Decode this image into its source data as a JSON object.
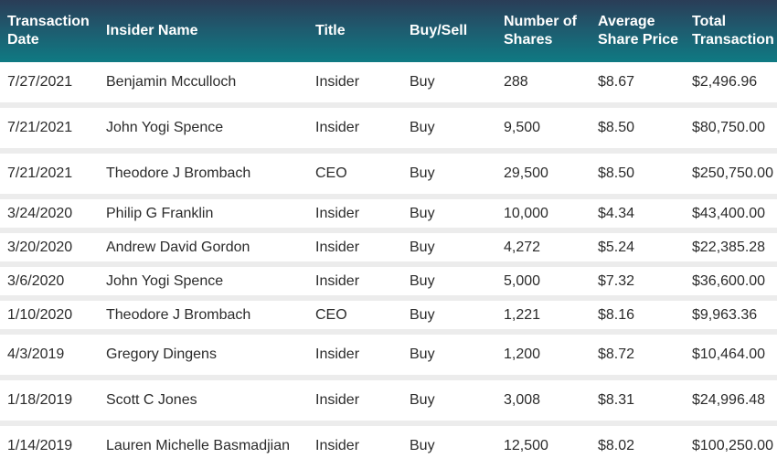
{
  "table": {
    "headers": {
      "date": "Transaction Date",
      "name": "Insider Name",
      "title": "Title",
      "buy_sell": "Buy/Sell",
      "shares": "Number of Shares",
      "price": "Average Share Price",
      "total": "Total Transaction"
    },
    "rows": [
      {
        "date": "7/27/2021",
        "name": "Benjamin Mcculloch",
        "title": "Insider",
        "buy_sell": "Buy",
        "shares": "288",
        "price": "$8.67",
        "total": "$2,496.96"
      },
      {
        "date": "7/21/2021",
        "name": "John Yogi Spence",
        "title": "Insider",
        "buy_sell": "Buy",
        "shares": "9,500",
        "price": "$8.50",
        "total": "$80,750.00"
      },
      {
        "date": "7/21/2021",
        "name": "Theodore J Brombach",
        "title": "CEO",
        "buy_sell": "Buy",
        "shares": "29,500",
        "price": "$8.50",
        "total": "$250,750.00"
      },
      {
        "date": "3/24/2020",
        "name": "Philip G Franklin",
        "title": "Insider",
        "buy_sell": "Buy",
        "shares": "10,000",
        "price": "$4.34",
        "total": "$43,400.00"
      },
      {
        "date": "3/20/2020",
        "name": "Andrew David Gordon",
        "title": "Insider",
        "buy_sell": "Buy",
        "shares": "4,272",
        "price": "$5.24",
        "total": "$22,385.28"
      },
      {
        "date": "3/6/2020",
        "name": "John Yogi Spence",
        "title": "Insider",
        "buy_sell": "Buy",
        "shares": "5,000",
        "price": "$7.32",
        "total": "$36,600.00"
      },
      {
        "date": "1/10/2020",
        "name": "Theodore J Brombach",
        "title": "CEO",
        "buy_sell": "Buy",
        "shares": "1,221",
        "price": "$8.16",
        "total": "$9,963.36"
      },
      {
        "date": "4/3/2019",
        "name": "Gregory Dingens",
        "title": "Insider",
        "buy_sell": "Buy",
        "shares": "1,200",
        "price": "$8.72",
        "total": "$10,464.00"
      },
      {
        "date": "1/18/2019",
        "name": "Scott C Jones",
        "title": "Insider",
        "buy_sell": "Buy",
        "shares": "3,008",
        "price": "$8.31",
        "total": "$24,996.48"
      },
      {
        "date": "1/14/2019",
        "name": "Lauren Michelle Basmadjian",
        "title": "Insider",
        "buy_sell": "Buy",
        "shares": "12,500",
        "price": "$8.02",
        "total": "$100,250.00"
      }
    ]
  },
  "colors": {
    "header_gradient_start": "#2a3d57",
    "header_gradient_end": "#0f7a83",
    "header_text": "#ffffff",
    "row_separator": "#ececec",
    "cell_text": "#2b2b2b"
  }
}
